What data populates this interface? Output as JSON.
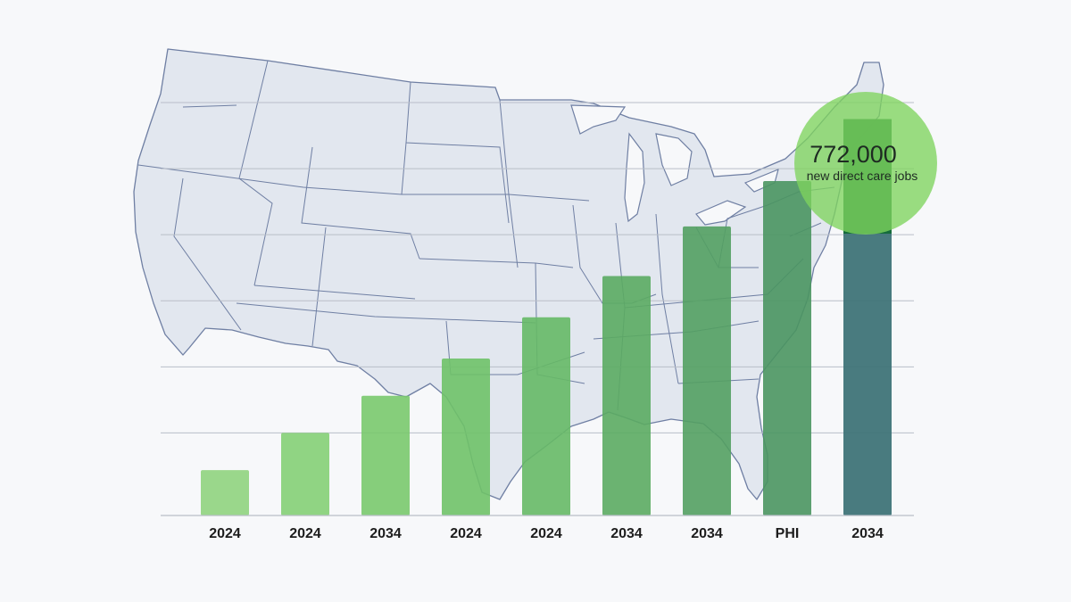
{
  "chart_data": {
    "type": "bar",
    "categories": [
      "2024",
      "2024",
      "2034",
      "2024",
      "2024",
      "2034",
      "2034",
      "PHI",
      "2034"
    ],
    "values": [
      11,
      20,
      29,
      38,
      48,
      58,
      70,
      81,
      96
    ],
    "ylim": [
      0,
      100
    ],
    "grid": true,
    "legend": "none",
    "annotation": {
      "value": "772,000",
      "label": "new direct care jobs",
      "target_index": 8
    },
    "colors": [
      "#8fd37e",
      "#84cf75",
      "#79c96d",
      "#6fc268",
      "#66b966",
      "#5bab62",
      "#53a062",
      "#4a9560",
      "#3f7478"
    ],
    "background_map": "united-states-outline"
  }
}
